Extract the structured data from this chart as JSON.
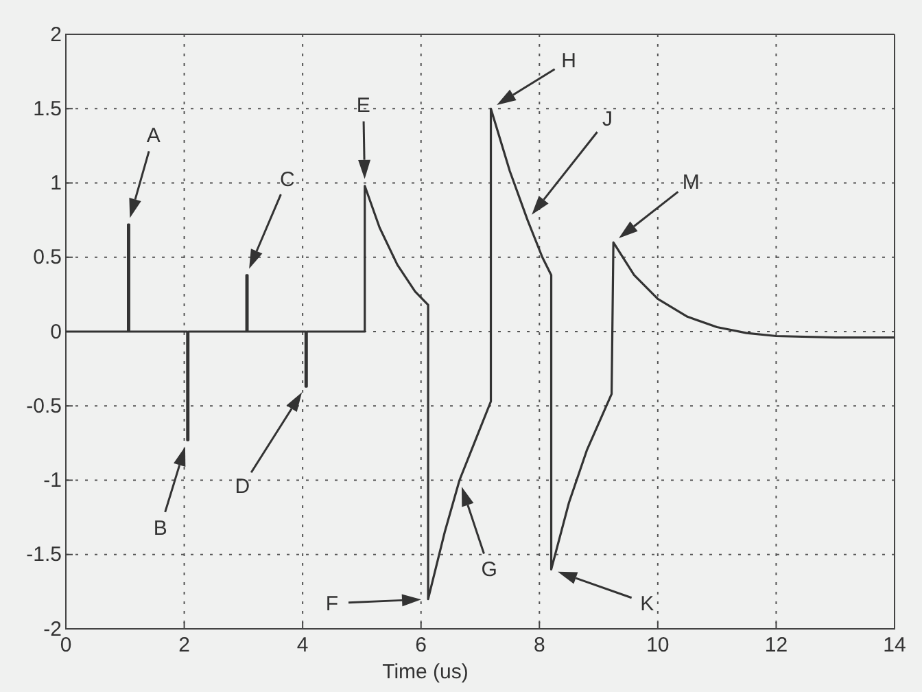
{
  "chart_data": {
    "type": "line",
    "xlabel": "Time (us)",
    "xlim": [
      0,
      14
    ],
    "ylim": [
      -2,
      2
    ],
    "xticks": [
      0,
      2,
      4,
      6,
      8,
      10,
      12,
      14
    ],
    "yticks": [
      -2,
      -1.5,
      -1,
      -0.5,
      0,
      0.5,
      1,
      1.5,
      2
    ],
    "grid": true,
    "line_style": "solid",
    "marker": "none",
    "series": [
      {
        "color": "#333333",
        "x": [
          0,
          1.05,
          1.05,
          1.07,
          1.07,
          2.05,
          2.05,
          2.07,
          2.07,
          3.05,
          3.05,
          3.07,
          3.07,
          4.05,
          4.05,
          4.07,
          4.07,
          5.05,
          5.05,
          5.3,
          5.6,
          5.9,
          6.12,
          6.12,
          6.4,
          6.65,
          6.9,
          7.18,
          7.18,
          7.5,
          7.8,
          8.05,
          8.2,
          8.2,
          8.5,
          8.8,
          9.22,
          9.25,
          9.6,
          10,
          10.5,
          11,
          11.5,
          12,
          13,
          14
        ],
        "values": [
          0,
          0,
          0.72,
          0.72,
          0,
          0,
          -0.73,
          -0.73,
          0,
          0,
          0.38,
          0.38,
          0,
          0,
          -0.37,
          -0.37,
          0,
          0,
          0.98,
          0.7,
          0.45,
          0.27,
          0.18,
          -1.8,
          -1.35,
          -1.0,
          -0.75,
          -0.47,
          1.5,
          1.08,
          0.75,
          0.5,
          0.38,
          -1.6,
          -1.15,
          -0.8,
          -0.42,
          0.6,
          0.38,
          0.22,
          0.1,
          0.03,
          -0.01,
          -0.03,
          -0.04,
          -0.04
        ]
      }
    ],
    "annotations": [
      "A",
      "B",
      "C",
      "D",
      "E",
      "F",
      "G",
      "H",
      "J",
      "K",
      "M"
    ]
  }
}
